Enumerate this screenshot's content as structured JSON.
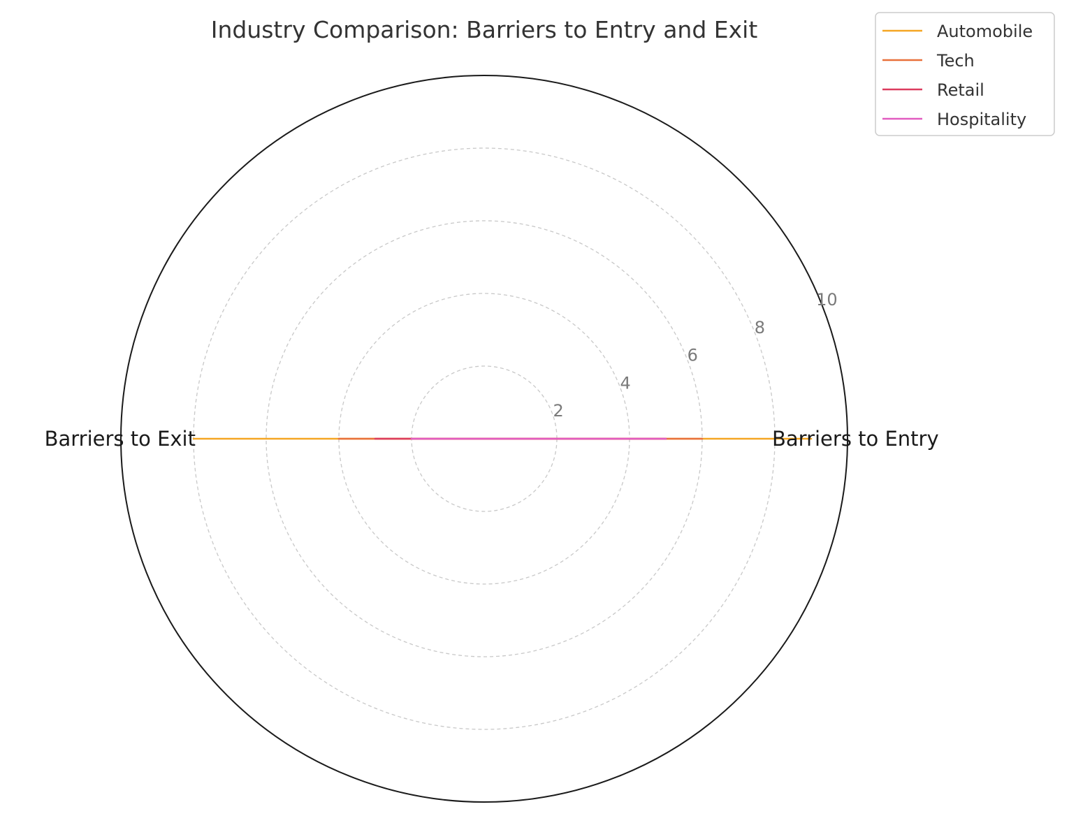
{
  "chart_data": {
    "type": "radar",
    "title": "Industry Comparison: Barriers to Entry and Exit",
    "axes": [
      "Barriers to Entry",
      "Barriers to Exit"
    ],
    "rlim": [
      0,
      10
    ],
    "rticks": [
      2,
      4,
      6,
      8,
      10
    ],
    "rtick_labels": [
      "2",
      "4",
      "6",
      "8",
      "10"
    ],
    "grid": true,
    "legend_position": "top-right",
    "series": [
      {
        "name": "Automobile",
        "values": [
          9,
          8
        ],
        "color": "#F5A623"
      },
      {
        "name": "Tech",
        "values": [
          6,
          4
        ],
        "color": "#E8703A"
      },
      {
        "name": "Retail",
        "values": [
          5,
          3
        ],
        "color": "#DC3B5E"
      },
      {
        "name": "Hospitality",
        "values": [
          5,
          2
        ],
        "color": "#E15BC0"
      }
    ]
  }
}
